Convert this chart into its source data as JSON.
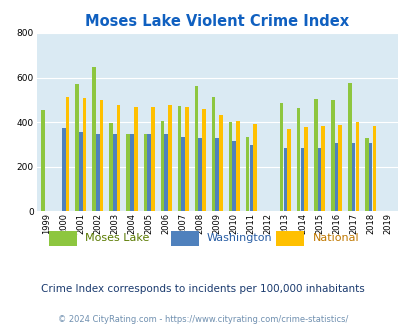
{
  "title": "Moses Lake Violent Crime Index",
  "years": [
    1999,
    2000,
    2001,
    2002,
    2003,
    2004,
    2005,
    2006,
    2007,
    2008,
    2009,
    2010,
    2011,
    2012,
    2013,
    2014,
    2015,
    2016,
    2017,
    2018,
    2019
  ],
  "moses_lake": [
    455,
    0,
    570,
    648,
    397,
    348,
    348,
    403,
    472,
    562,
    512,
    402,
    333,
    0,
    487,
    462,
    503,
    498,
    575,
    330,
    0
  ],
  "washington": [
    0,
    375,
    355,
    348,
    348,
    348,
    348,
    348,
    335,
    330,
    330,
    315,
    298,
    0,
    282,
    285,
    283,
    307,
    307,
    308,
    0
  ],
  "national": [
    0,
    512,
    510,
    500,
    477,
    468,
    470,
    477,
    470,
    457,
    430,
    405,
    390,
    0,
    368,
    378,
    384,
    387,
    401,
    383,
    0
  ],
  "colors": {
    "moses_lake": "#8dc63f",
    "washington": "#4f81bd",
    "national": "#ffc000"
  },
  "legend_colors": {
    "moses_lake": "#5a7a00",
    "washington": "#2a5fa5",
    "national": "#c07800"
  },
  "bg_color": "#daeaf3",
  "ylim": [
    0,
    800
  ],
  "yticks": [
    0,
    200,
    400,
    600,
    800
  ],
  "subtitle": "Crime Index corresponds to incidents per 100,000 inhabitants",
  "copyright": "© 2024 CityRating.com - https://www.cityrating.com/crime-statistics/",
  "subtitle_color": "#1a3a6e",
  "copyright_color": "#7090b0",
  "title_color": "#1060c0"
}
